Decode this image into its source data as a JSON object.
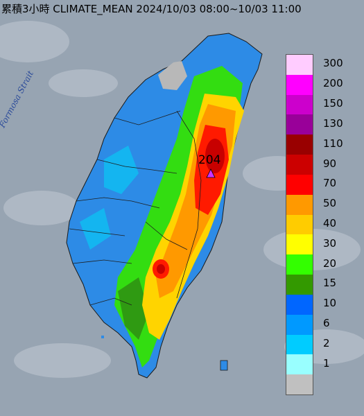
{
  "title": "累積3小時 CLIMATE_MEAN 2024/10/03 08:00~10/03 11:00",
  "water_label": "Formosa Strait",
  "max_marker": {
    "value": "204",
    "icon": "triangle-up-icon",
    "color": "#cc33ff"
  },
  "legend": {
    "swatches": [
      {
        "label": "300",
        "color": "#ffccff"
      },
      {
        "label": "200",
        "color": "#ff00ff"
      },
      {
        "label": "150",
        "color": "#cc00cc"
      },
      {
        "label": "130",
        "color": "#990099"
      },
      {
        "label": "110",
        "color": "#990000"
      },
      {
        "label": "90",
        "color": "#cc0000"
      },
      {
        "label": "70",
        "color": "#ff0000"
      },
      {
        "label": "50",
        "color": "#ff9900"
      },
      {
        "label": "40",
        "color": "#ffcc00"
      },
      {
        "label": "30",
        "color": "#ffff00"
      },
      {
        "label": "20",
        "color": "#33ff00"
      },
      {
        "label": "15",
        "color": "#339900"
      },
      {
        "label": "10",
        "color": "#0066ff"
      },
      {
        "label": "6",
        "color": "#0099ff"
      },
      {
        "label": "2",
        "color": "#00ccff"
      },
      {
        "label": "1",
        "color": "#99ffff"
      },
      {
        "label": "",
        "color": "#c0c0c0"
      }
    ]
  }
}
